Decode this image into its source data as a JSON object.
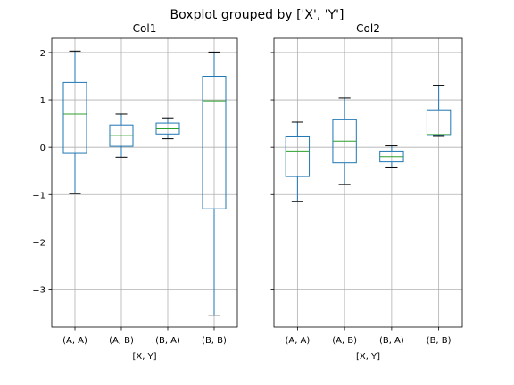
{
  "suptitle": "Boxplot grouped by ['X', 'Y']",
  "colors": {
    "box": "#1f77b4",
    "median": "#2ca02c",
    "grid": "#b0b0b0",
    "axes": "#000000"
  },
  "chart_data": [
    {
      "type": "box",
      "title": "Col1",
      "xlabel": "[X, Y]",
      "ylabel": "",
      "ylim": [
        -3.8,
        2.3
      ],
      "yticks": [
        2,
        1,
        0,
        -1,
        -2,
        -3
      ],
      "ytick_labels": [
        "2",
        "1",
        "0",
        "−1",
        "−2",
        "−3"
      ],
      "show_ytick_labels": true,
      "grid": true,
      "categories": [
        "(A, A)",
        "(A, B)",
        "(B, A)",
        "(B, B)"
      ],
      "boxes": [
        {
          "whisker_low": -0.98,
          "q1": -0.13,
          "median": 0.7,
          "q3": 1.37,
          "whisker_high": 2.03
        },
        {
          "whisker_low": -0.21,
          "q1": 0.02,
          "median": 0.25,
          "q3": 0.47,
          "whisker_high": 0.7
        },
        {
          "whisker_low": 0.18,
          "q1": 0.28,
          "median": 0.39,
          "q3": 0.51,
          "whisker_high": 0.62
        },
        {
          "whisker_low": -3.55,
          "q1": -1.3,
          "median": 0.98,
          "q3": 1.5,
          "whisker_high": 2.01
        }
      ]
    },
    {
      "type": "box",
      "title": "Col2",
      "xlabel": "[X, Y]",
      "ylabel": "",
      "ylim": [
        -3.8,
        2.3
      ],
      "yticks": [
        2,
        1,
        0,
        -1,
        -2,
        -3
      ],
      "ytick_labels": [
        "2",
        "1",
        "0",
        "−1",
        "−2",
        "−3"
      ],
      "show_ytick_labels": false,
      "grid": true,
      "categories": [
        "(A, A)",
        "(A, B)",
        "(B, A)",
        "(B, B)"
      ],
      "boxes": [
        {
          "whisker_low": -1.15,
          "q1": -0.62,
          "median": -0.08,
          "q3": 0.22,
          "whisker_high": 0.53
        },
        {
          "whisker_low": -0.79,
          "q1": -0.33,
          "median": 0.13,
          "q3": 0.58,
          "whisker_high": 1.04
        },
        {
          "whisker_low": -0.42,
          "q1": -0.31,
          "median": -0.2,
          "q3": -0.08,
          "whisker_high": 0.03
        },
        {
          "whisker_low": 0.23,
          "q1": 0.25,
          "median": 0.27,
          "q3": 0.79,
          "whisker_high": 1.31
        }
      ]
    }
  ]
}
